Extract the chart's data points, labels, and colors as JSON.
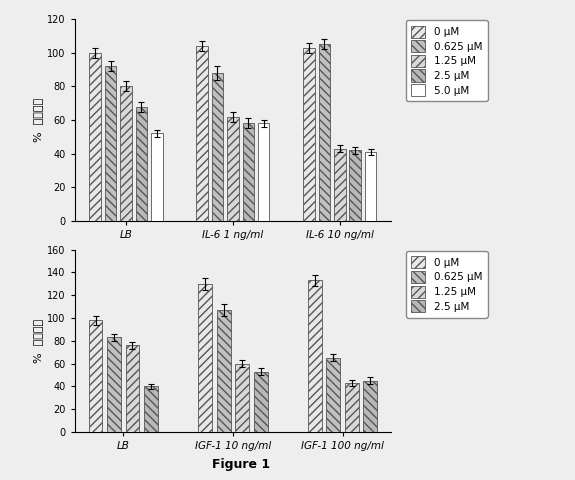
{
  "top": {
    "groups": [
      "LB",
      "IL-6 1 ng/ml",
      "IL-6 10 ng/ml"
    ],
    "labels": [
      "0 μM",
      "0.625 μM",
      "1.25 μM",
      "2.5 μM",
      "5.0 μM"
    ],
    "values": [
      [
        100,
        92,
        80,
        68,
        52
      ],
      [
        104,
        88,
        62,
        58,
        58
      ],
      [
        103,
        105,
        43,
        42,
        41
      ]
    ],
    "errors": [
      [
        3,
        3,
        3,
        3,
        2
      ],
      [
        3,
        4,
        3,
        3,
        2
      ],
      [
        3,
        3,
        2,
        2,
        2
      ]
    ],
    "ylim": [
      0,
      120
    ],
    "yticks": [
      0,
      20,
      40,
      60,
      80,
      100,
      120
    ],
    "ylabel": "%  細胞増殖"
  },
  "bottom": {
    "groups": [
      "LB",
      "IGF-1 10 ng/ml",
      "IGF-1 100 ng/ml"
    ],
    "labels": [
      "0 μM",
      "0.625 μM",
      "1.25 μM",
      "2.5 μM"
    ],
    "values": [
      [
        98,
        83,
        76,
        40
      ],
      [
        130,
        107,
        60,
        53
      ],
      [
        133,
        65,
        43,
        45
      ]
    ],
    "errors": [
      [
        4,
        3,
        3,
        2
      ],
      [
        5,
        5,
        3,
        3
      ],
      [
        5,
        3,
        3,
        3
      ]
    ],
    "ylim": [
      0,
      160
    ],
    "yticks": [
      0,
      20,
      40,
      60,
      80,
      100,
      120,
      140,
      160
    ],
    "ylabel": "%  細胞増殖"
  },
  "figure_label": "Figure 1",
  "facecolors": [
    "#e8e8e8",
    "#c0c0c0",
    "#d8d8d8",
    "#b8b8b8",
    "#ffffff"
  ],
  "hatches_top": [
    "////",
    "\\\\\\\\",
    "////",
    "\\\\\\\\",
    ""
  ],
  "hatches_bot": [
    "////",
    "\\\\\\\\",
    "////",
    "\\\\\\\\"
  ],
  "bar_edgecolor": "#555555"
}
